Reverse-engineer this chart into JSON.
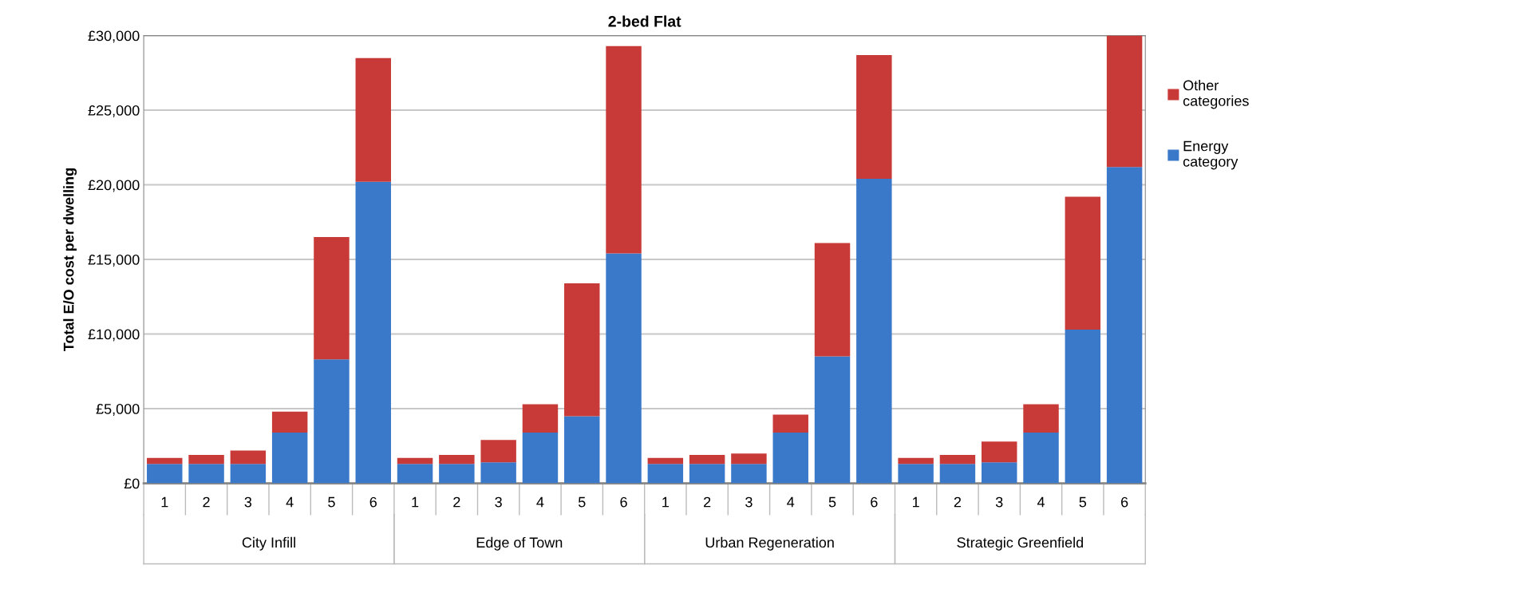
{
  "chart_data": {
    "type": "bar",
    "title": "2-bed Flat",
    "ylabel": "Total E/O cost per dwelling",
    "categories": [
      "1",
      "2",
      "3",
      "4",
      "5",
      "6",
      "1",
      "2",
      "3",
      "4",
      "5",
      "6",
      "1",
      "2",
      "3",
      "4",
      "5",
      "6",
      "1",
      "2",
      "3",
      "4",
      "5",
      "6"
    ],
    "annotations": [
      "City Infill",
      "Edge of Town",
      "Urban Regeneration",
      "Strategic Greenfield"
    ],
    "stacked": true,
    "series": [
      {
        "name": "Energy category",
        "color": "#3a78c9",
        "values": [
          1300,
          1300,
          1300,
          3400,
          8300,
          20200,
          1300,
          1300,
          1400,
          3400,
          4500,
          15400,
          1300,
          1300,
          1300,
          3400,
          8500,
          20400,
          1300,
          1300,
          1400,
          3400,
          10300,
          21200
        ]
      },
      {
        "name": "Other categories",
        "color": "#c83a37",
        "values": [
          400,
          600,
          900,
          1400,
          8200,
          8300,
          400,
          600,
          1500,
          1900,
          8900,
          13900,
          400,
          600,
          700,
          1200,
          7600,
          8300,
          400,
          600,
          1400,
          1900,
          8900,
          8800
        ]
      }
    ],
    "ylim": [
      0,
      30000
    ],
    "yticks": [
      {
        "value": 0,
        "label": "£0"
      },
      {
        "value": 5000,
        "label": "£5,000"
      },
      {
        "value": 10000,
        "label": "£10,000"
      },
      {
        "value": 15000,
        "label": "£15,000"
      },
      {
        "value": 20000,
        "label": "£20,000"
      },
      {
        "value": 25000,
        "label": "£25,000"
      },
      {
        "value": 30000,
        "label": "£30,000"
      }
    ],
    "grid": "y",
    "legend": "top right"
  }
}
